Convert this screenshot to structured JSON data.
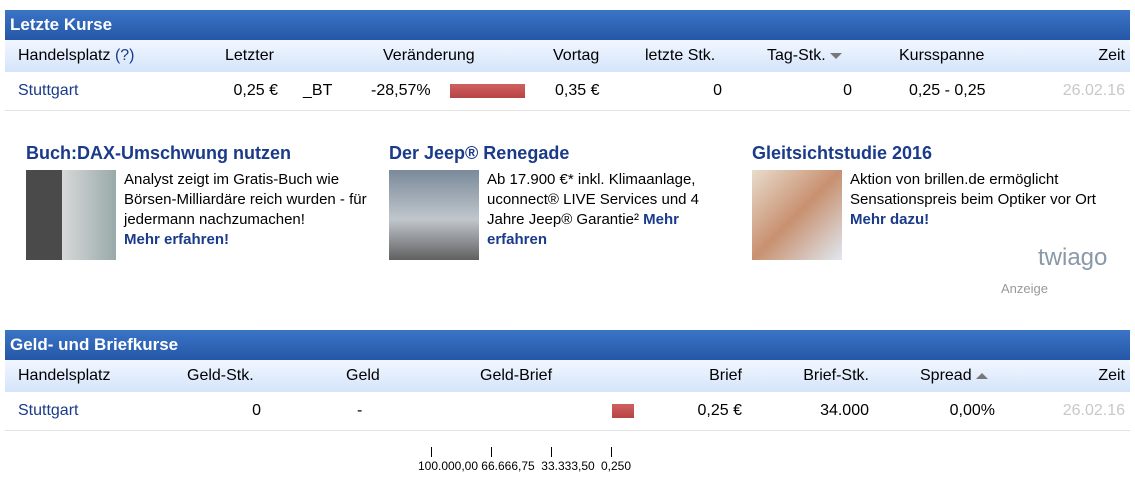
{
  "kurse": {
    "title": "Letzte Kurse",
    "headers": [
      "Handelsplatz",
      "(?)",
      "Letzter",
      "Veränderung",
      "Vortag",
      "letzte Stk.",
      "Tag-Stk.",
      "Kursspanne",
      "Zeit"
    ],
    "row": {
      "place": "Stuttgart",
      "last": "0,25 €",
      "flag": "_BT",
      "change": "-28,57%",
      "prev": "0,35 €",
      "last_qty": "0",
      "day_qty": "0",
      "range": "0,25 - 0,25",
      "time": "26.02.16"
    },
    "sorted_column": "Tag-Stk.",
    "sort_direction": "descending"
  },
  "ads": [
    {
      "title": "Buch:DAX-Umschwung nutzen",
      "text": "Analyst zeigt im Gratis-Buch wie Börsen-Milliardäre reich wurden - für jedermann nachzumachen!",
      "link": "Mehr erfahren!"
    },
    {
      "title": "Der Jeep® Renegade",
      "text": "Ab 17.900 €* inkl. Klimaanlage, uconnect® LIVE Services und 4 Jahre Jeep® Garantie²",
      "link": "Mehr erfahren"
    },
    {
      "title": "Gleitsichtstudie 2016",
      "text": "Aktion von brillen.de ermöglicht Sensationspreis beim Optiker vor Ort",
      "link": "Mehr dazu!"
    }
  ],
  "ad_brand": "twiago",
  "ad_label": "Anzeige",
  "geld": {
    "title": "Geld- und Briefkurse",
    "headers": [
      "Handelsplatz",
      "Geld-Stk.",
      "Geld",
      "Geld-Brief",
      "Brief",
      "Brief-Stk.",
      "Spread",
      "Zeit"
    ],
    "row": {
      "place": "Stuttgart",
      "bid_qty": "0",
      "bid": "-",
      "ask": "0,25 €",
      "ask_qty": "34.000",
      "spread": "0,00%",
      "time": "26.02.16"
    },
    "sorted_column": "Spread",
    "sort_direction": "ascending"
  },
  "axis_ticks": [
    "100.000,00",
    "66.666,75",
    "33.333,50",
    "0,250"
  ],
  "colors": {
    "header": "#2f66b8",
    "bar": "#c45050",
    "link": "#1a3a8a"
  }
}
